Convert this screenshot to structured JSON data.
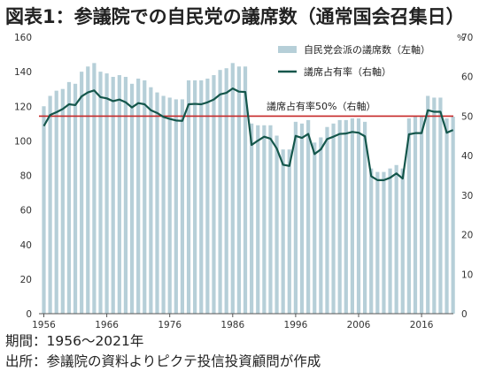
{
  "title": "図表1：参議院での自民党の議席数（通常国会召集日）",
  "notes": {
    "period": "期間：1956～2021年",
    "source": "出所：参議院の資料よりピクテ投信投資顧問が作成"
  },
  "chart_data": {
    "type": "bar+line",
    "x_tick_labels": [
      "1956",
      "1966",
      "1976",
      "1986",
      "1996",
      "2006",
      "2016"
    ],
    "left_axis": {
      "label": "",
      "ticks": [
        0,
        20,
        40,
        60,
        80,
        100,
        120,
        140,
        160
      ],
      "ylim": [
        0,
        160
      ]
    },
    "right_axis": {
      "label": "%",
      "ticks": [
        0,
        10,
        20,
        30,
        40,
        50,
        60,
        70
      ],
      "ylim": [
        0,
        70
      ]
    },
    "legend": {
      "position": "top-right",
      "items": [
        {
          "label": "自民党会派の議席数（左軸）",
          "color": "#b6cfd8"
        },
        {
          "label": "議席占有率（右軸）",
          "color": "#14564b"
        }
      ]
    },
    "reference_line": {
      "label": "議席占有率50%（右軸）",
      "value": 50,
      "axis": "right",
      "color": "#c62828"
    },
    "grid": false,
    "x": [
      1956,
      1957,
      1958,
      1959,
      1960,
      1961,
      1962,
      1963,
      1964,
      1965,
      1966,
      1967,
      1968,
      1969,
      1970,
      1971,
      1972,
      1973,
      1974,
      1975,
      1976,
      1977,
      1978,
      1979,
      1980,
      1981,
      1982,
      1983,
      1984,
      1985,
      1986,
      1987,
      1988,
      1989,
      1990,
      1991,
      1992,
      1993,
      1994,
      1995,
      1996,
      1997,
      1998,
      1999,
      2000,
      2001,
      2002,
      2003,
      2004,
      2005,
      2006,
      2007,
      2008,
      2009,
      2010,
      2011,
      2012,
      2013,
      2014,
      2015,
      2016,
      2017,
      2018,
      2019,
      2020,
      2021
    ],
    "series": [
      {
        "name": "自民党会派の議席数（左軸）",
        "type": "bar",
        "values": [
          120,
          126,
          129,
          130,
          134,
          133,
          140,
          143,
          145,
          140,
          139,
          137,
          138,
          137,
          133,
          136,
          135,
          131,
          128,
          126,
          125,
          124,
          124,
          135,
          135,
          135,
          136,
          138,
          141,
          142,
          145,
          143,
          143,
          110,
          109,
          109,
          109,
          103,
          95,
          95,
          111,
          110,
          112,
          99,
          102,
          108,
          110,
          112,
          112,
          113,
          113,
          111,
          84,
          82,
          82,
          84,
          86,
          84,
          113,
          114,
          114,
          126,
          125,
          125,
          113,
          114
        ]
      },
      {
        "name": "議席占有率（右軸）",
        "type": "line",
        "values": [
          47.5,
          50.3,
          51.0,
          51.8,
          53.0,
          52.8,
          55.0,
          56.0,
          56.5,
          54.8,
          54.5,
          53.8,
          54.2,
          53.5,
          52.2,
          53.3,
          53.0,
          51.5,
          50.8,
          49.8,
          49.3,
          48.9,
          48.8,
          53.0,
          53.1,
          53.0,
          53.5,
          54.2,
          55.5,
          55.9,
          57.0,
          56.2,
          56.1,
          42.7,
          43.8,
          44.8,
          44.3,
          41.8,
          37.7,
          37.4,
          45.0,
          44.5,
          45.5,
          40.4,
          41.6,
          44.2,
          44.8,
          45.5,
          45.6,
          46.0,
          45.8,
          44.9,
          34.8,
          33.8,
          33.8,
          34.4,
          35.5,
          34.2,
          45.4,
          45.7,
          45.7,
          51.5,
          51.1,
          51.1,
          45.8,
          46.5
        ]
      }
    ]
  }
}
